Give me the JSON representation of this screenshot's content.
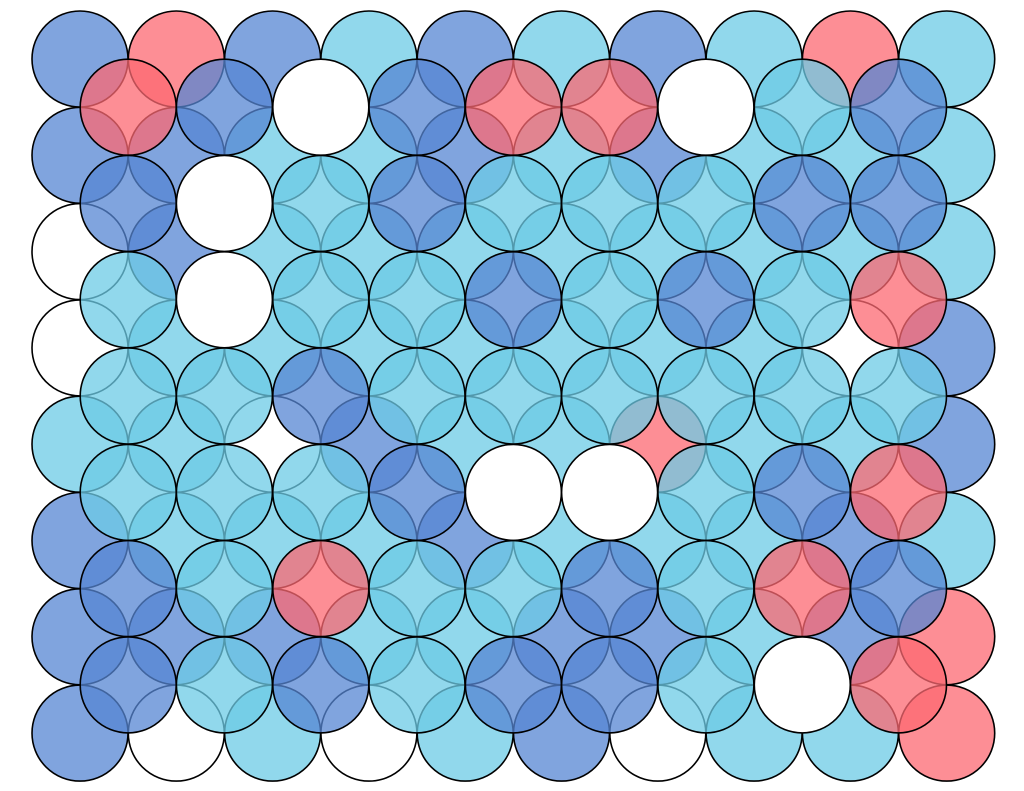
{
  "palette": {
    "W": "#ffffff",
    "L": "#6ccbe6",
    "B": "#5585d3",
    "R": "#fc6872"
  },
  "fill_opacity": 0.75,
  "grid_a": {
    "rows": 8,
    "cols": 10,
    "cells": [
      [
        "B",
        "R",
        "B",
        "L",
        "B",
        "L",
        "B",
        "L",
        "R",
        "L"
      ],
      [
        "B",
        "B",
        "L",
        "L",
        "B",
        "L",
        "B",
        "L",
        "L",
        "L"
      ],
      [
        "W",
        "B",
        "L",
        "L",
        "L",
        "L",
        "L",
        "L",
        "L",
        "L"
      ],
      [
        "W",
        "L",
        "L",
        "L",
        "L",
        "L",
        "L",
        "L",
        "W",
        "B"
      ],
      [
        "L",
        "L",
        "W",
        "B",
        "L",
        "L",
        "R",
        "L",
        "L",
        "B"
      ],
      [
        "B",
        "L",
        "L",
        "L",
        "B",
        "L",
        "L",
        "L",
        "B",
        "L"
      ],
      [
        "B",
        "B",
        "B",
        "L",
        "L",
        "B",
        "B",
        "L",
        "B",
        "R"
      ],
      [
        "B",
        "W",
        "L",
        "W",
        "L",
        "B",
        "W",
        "L",
        "L",
        "R"
      ]
    ]
  },
  "grid_b": {
    "rows": 7,
    "cols": 9,
    "cells": [
      [
        "R",
        "B",
        "W",
        "B",
        "R",
        "R",
        "W",
        "L",
        "B"
      ],
      [
        "B",
        "W",
        "L",
        "B",
        "L",
        "L",
        "L",
        "B",
        "B"
      ],
      [
        "L",
        "W",
        "L",
        "L",
        "B",
        "L",
        "B",
        "L",
        "R"
      ],
      [
        "L",
        "L",
        "B",
        "L",
        "L",
        "L",
        "L",
        "L",
        "L"
      ],
      [
        "L",
        "L",
        "L",
        "B",
        "W",
        "W",
        "L",
        "B",
        "R"
      ],
      [
        "B",
        "L",
        "R",
        "L",
        "L",
        "B",
        "L",
        "R",
        "B"
      ],
      [
        "B",
        "L",
        "B",
        "L",
        "B",
        "B",
        "L",
        "W",
        "R"
      ]
    ]
  }
}
